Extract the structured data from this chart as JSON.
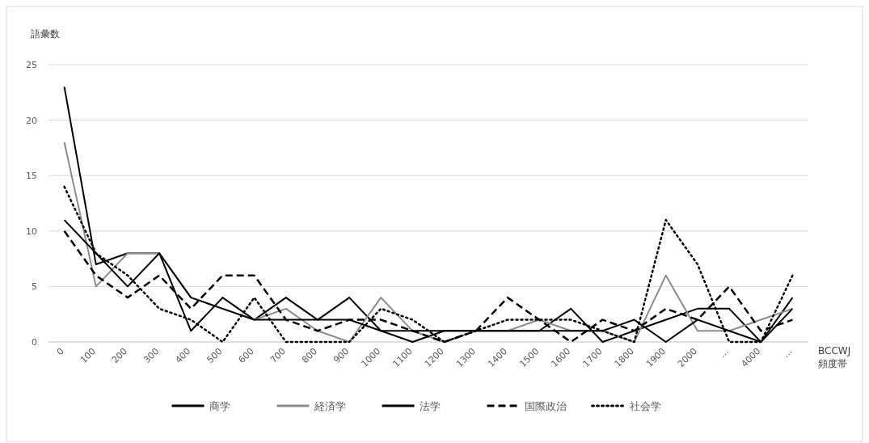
{
  "chart_data": {
    "type": "line",
    "ylabel": "語彙数",
    "xlabel": "BCCWJ 頻度帯",
    "categories": [
      "0",
      "100",
      "200",
      "300",
      "400",
      "500",
      "600",
      "700",
      "800",
      "900",
      "1000",
      "1100",
      "1200",
      "1300",
      "1400",
      "1500",
      "1600",
      "1700",
      "1800",
      "1900",
      "2000",
      "…",
      "4000",
      "…"
    ],
    "ylim": [
      0,
      25
    ],
    "yticks": [
      0,
      5,
      10,
      15,
      20,
      25
    ],
    "grid": "y",
    "legend": "bottom",
    "series": [
      {
        "name": "商学",
        "color": "#000000",
        "line_style": "solid",
        "values": [
          23,
          7,
          8,
          8,
          1,
          4,
          2,
          4,
          2,
          4,
          1,
          0,
          1,
          1,
          1,
          1,
          3,
          0,
          1,
          2,
          3,
          3,
          0,
          4
        ]
      },
      {
        "name": "経済学",
        "color": "#8c8c8c",
        "line_style": "solid",
        "values": [
          18,
          5,
          8,
          8,
          4,
          3,
          2,
          3,
          1,
          0,
          4,
          1,
          0,
          1,
          1,
          2,
          1,
          1,
          0,
          6,
          1,
          1,
          2,
          3
        ]
      },
      {
        "name": "法学",
        "color": "#000000",
        "line_style": "solid",
        "values": [
          11,
          8,
          5,
          8,
          4,
          3,
          2,
          2,
          2,
          2,
          1,
          1,
          1,
          1,
          1,
          1,
          1,
          1,
          2,
          0,
          2,
          1,
          0,
          3
        ]
      },
      {
        "name": "国際政治",
        "color": "#000000",
        "line_style": "dashed",
        "values": [
          10,
          6,
          4,
          6,
          3,
          6,
          6,
          2,
          1,
          2,
          2,
          1,
          0,
          1,
          4,
          2,
          0,
          2,
          1,
          3,
          2,
          5,
          1,
          2
        ]
      },
      {
        "name": "社会学",
        "color": "#000000",
        "line_style": "dotted",
        "values": [
          14,
          8,
          6,
          3,
          2,
          0,
          4,
          0,
          0,
          0,
          3,
          2,
          0,
          1,
          2,
          2,
          2,
          1,
          0,
          11,
          7,
          0,
          0,
          6
        ]
      }
    ]
  }
}
